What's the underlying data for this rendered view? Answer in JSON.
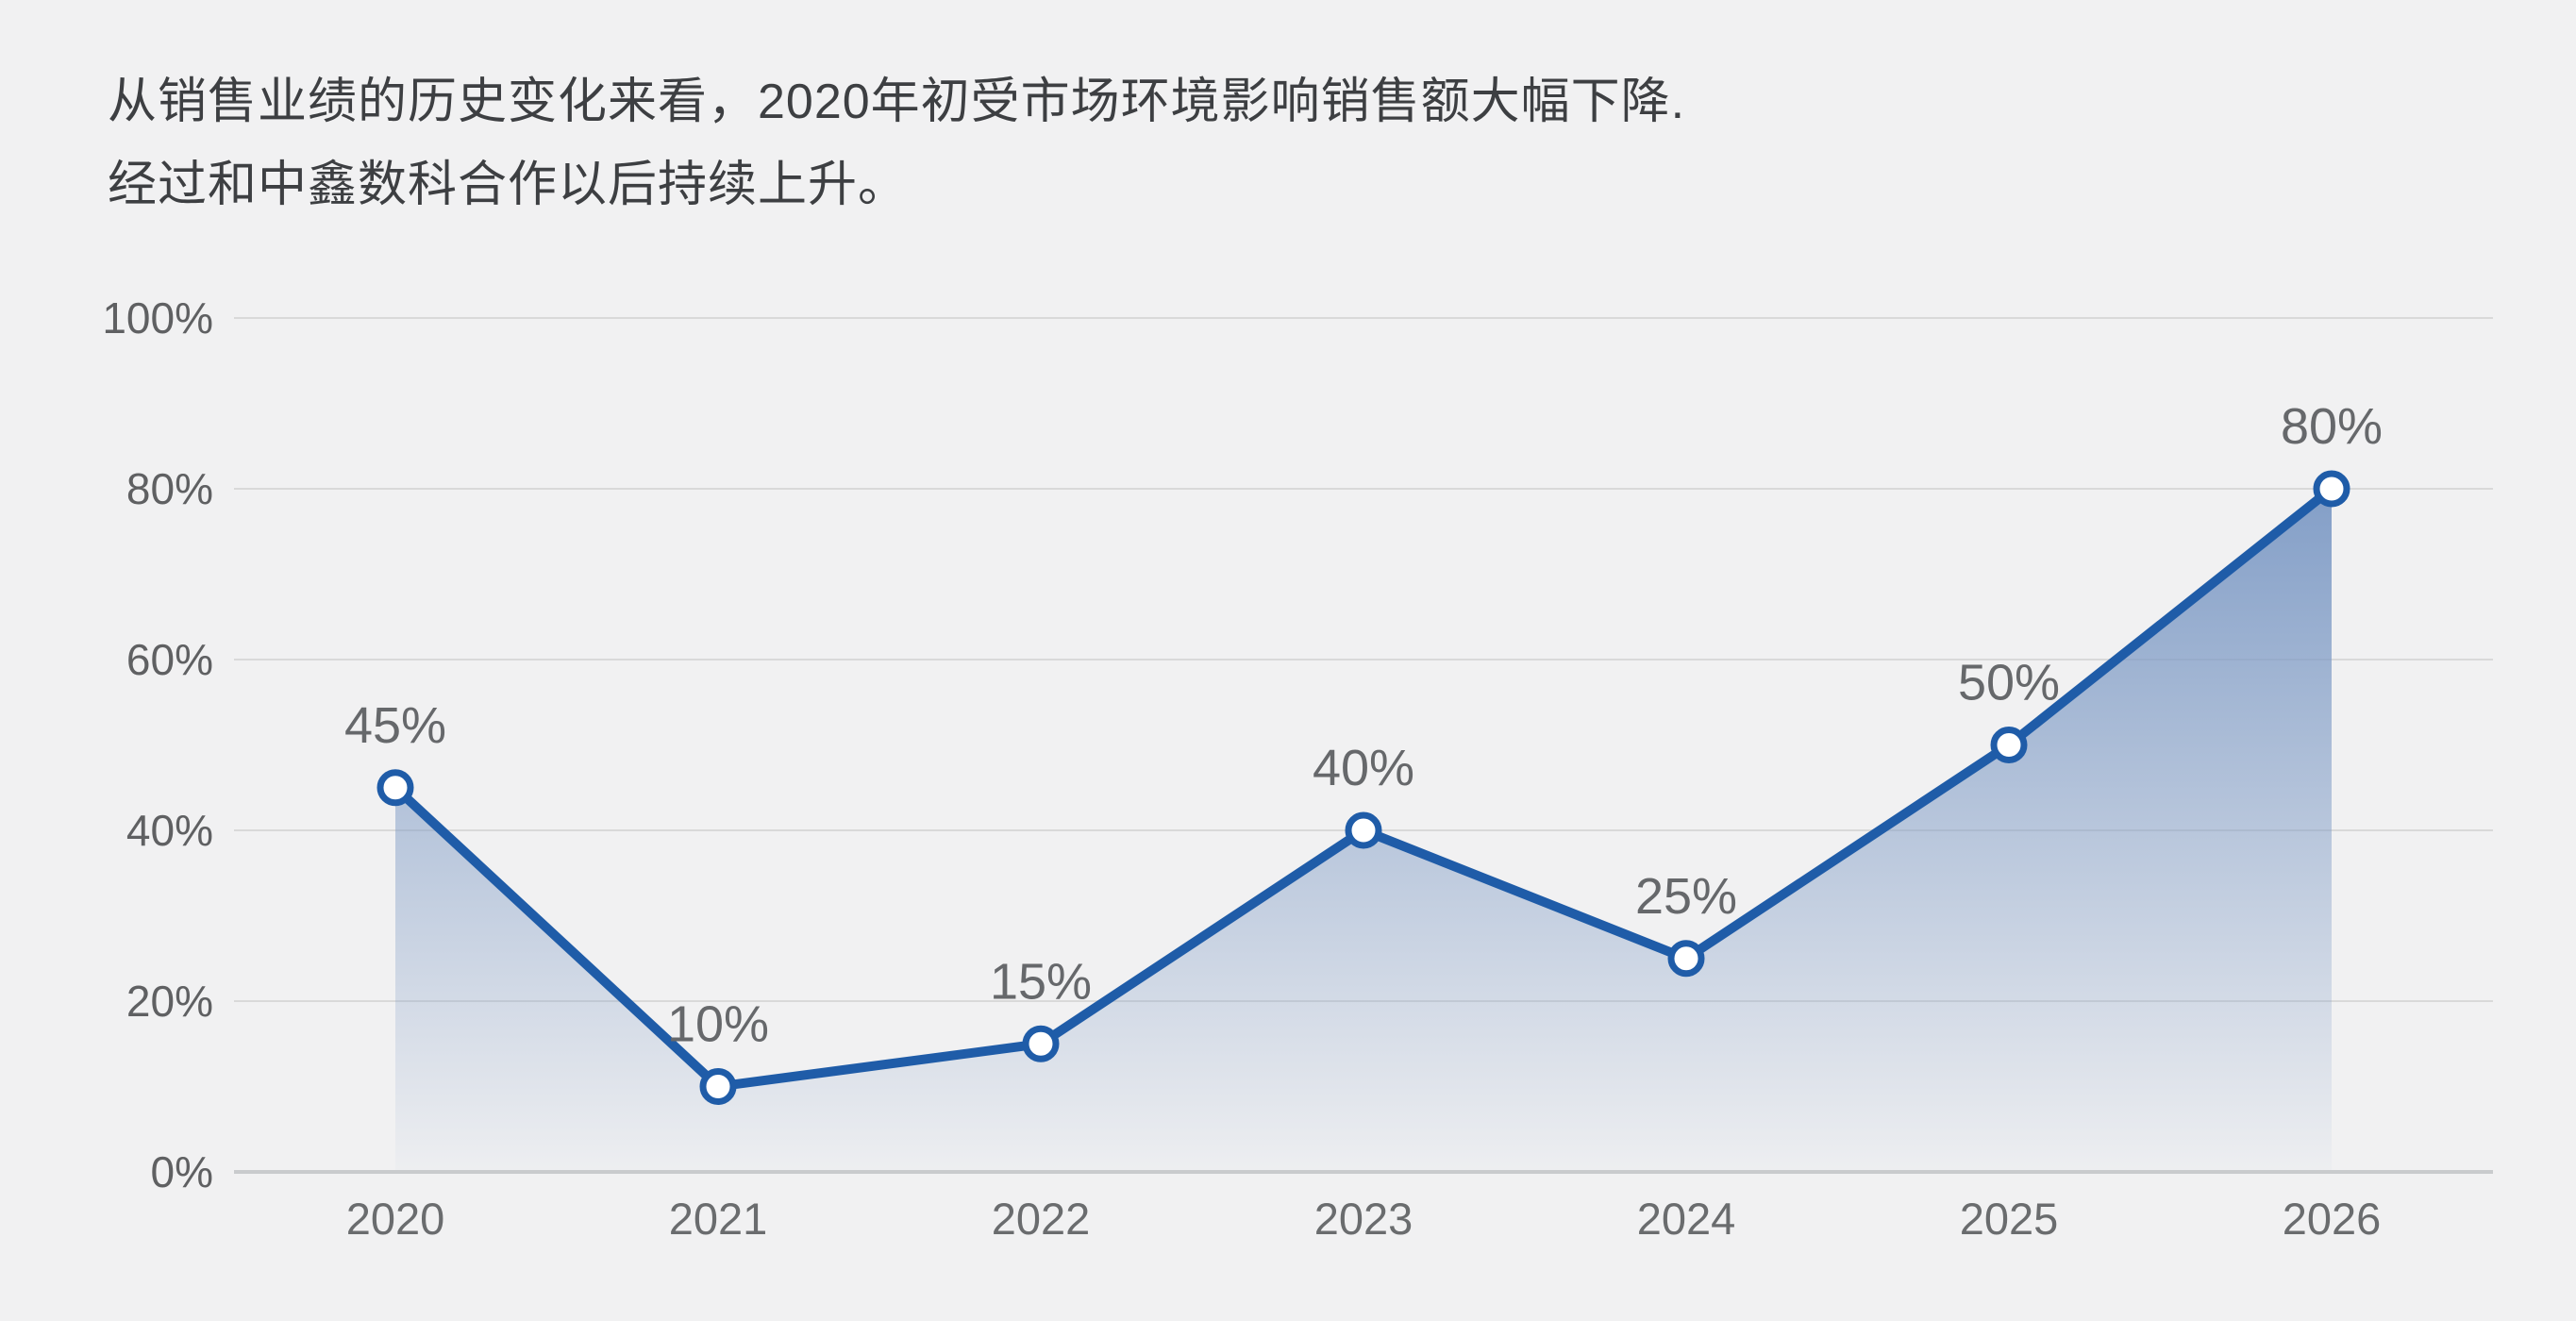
{
  "title": {
    "line1": "从销售业绩的历史变化来看，2020年初受市场环境影响销售额大幅下降.",
    "line2": "经过和中鑫数科合作以后持续上升。"
  },
  "chart_data": {
    "type": "area",
    "title": "",
    "xlabel": "",
    "ylabel": "",
    "categories": [
      "2020",
      "2021",
      "2022",
      "2023",
      "2024",
      "2025",
      "2026"
    ],
    "values": [
      45,
      10,
      15,
      40,
      25,
      50,
      80
    ],
    "data_labels": [
      "45%",
      "10%",
      "15%",
      "40%",
      "25%",
      "50%",
      "80%"
    ],
    "y_tick_labels": [
      "0%",
      "20%",
      "40%",
      "60%",
      "80%",
      "100%"
    ],
    "y_tick_values": [
      0,
      20,
      40,
      60,
      80,
      100
    ],
    "ylim": [
      0,
      100
    ],
    "grid": "horizontal-only",
    "legend": "none",
    "marker": "circle-white-fill",
    "colors": {
      "background": "#f1f1f2",
      "line": "#1f5ca8",
      "marker_fill": "#ffffff",
      "marker_ring": "#1f5ca8",
      "area_top": "#7d9ac5",
      "gridline": "#d9d9d9",
      "axis_line": "#c9cbcd",
      "y_tick_text": "#5f6062",
      "x_tick_text": "#6a6c6e",
      "data_label_text": "#66686b",
      "title_text": "#3d3f42"
    }
  }
}
